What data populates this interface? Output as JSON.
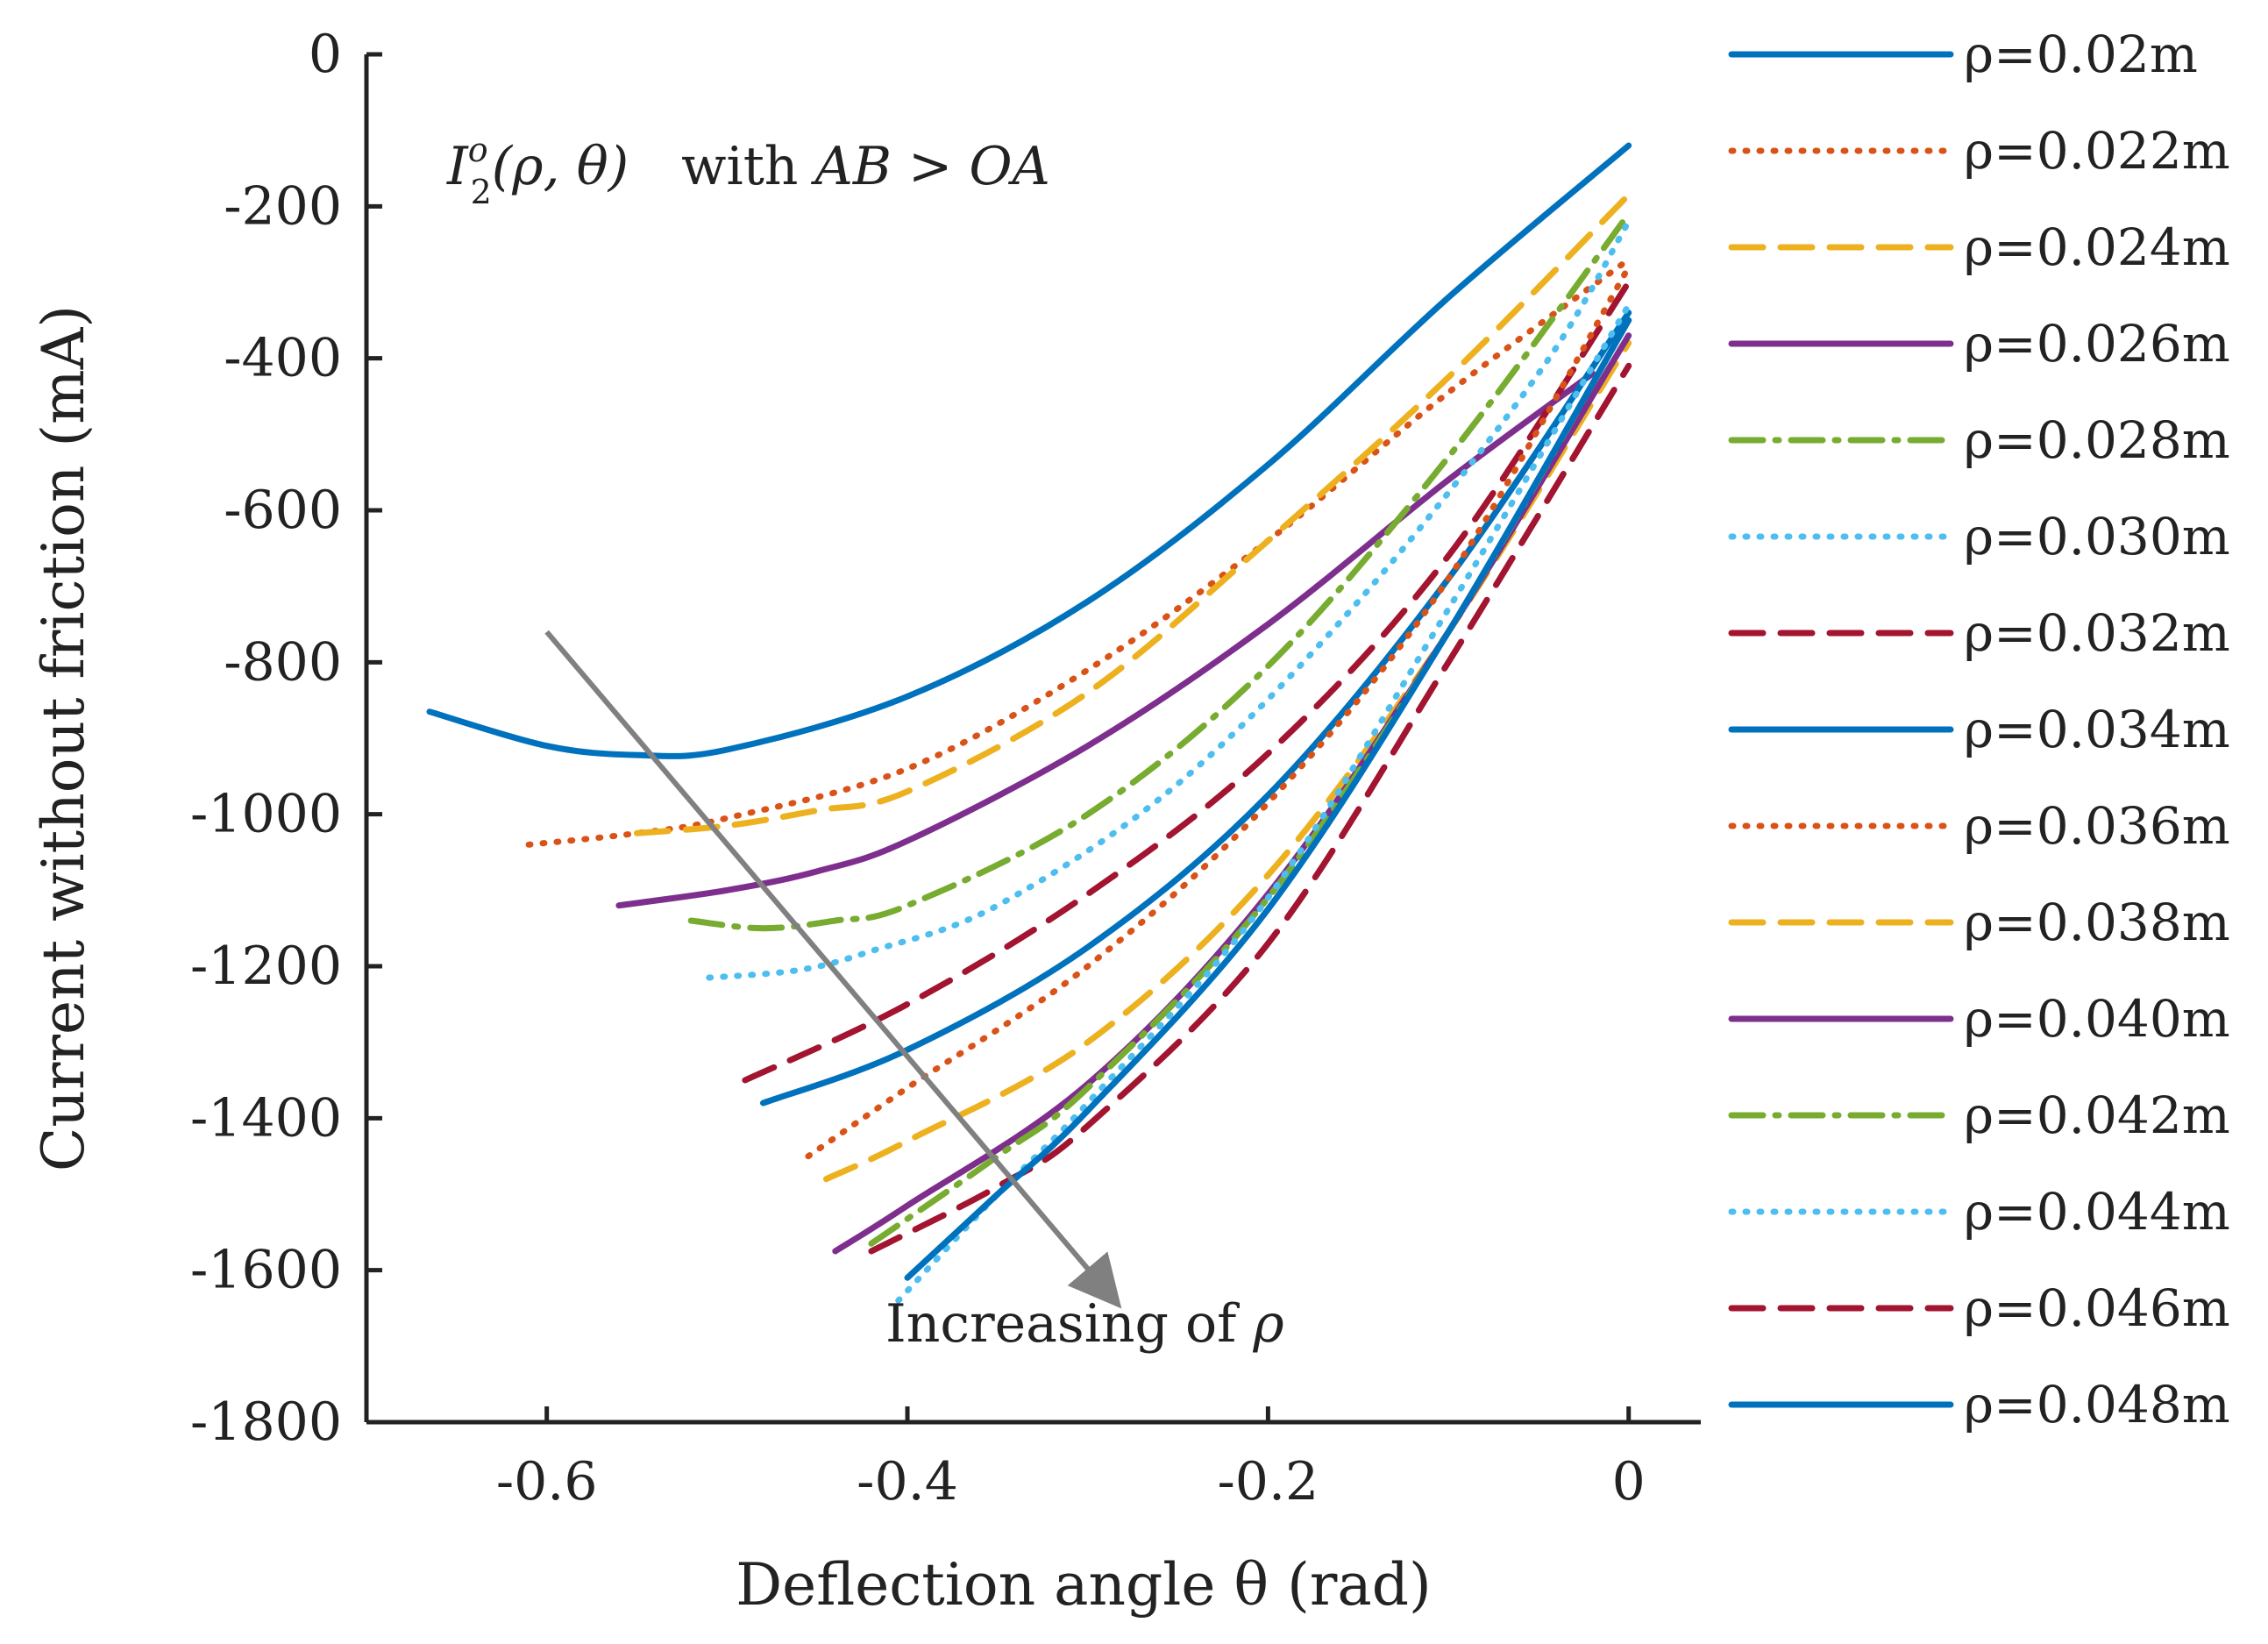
{
  "chart_data": {
    "type": "line",
    "title": "",
    "xlabel": "Deflection angle θ (rad)",
    "ylabel": "Current without friction (mA)",
    "xlim": [
      -0.7,
      0.04
    ],
    "ylim": [
      -1800,
      0
    ],
    "x_ticks": [
      -0.6,
      -0.4,
      -0.2,
      0
    ],
    "x_tick_labels": [
      "-0.6",
      "-0.4",
      "-0.2",
      "0"
    ],
    "y_ticks": [
      0,
      -200,
      -400,
      -600,
      -800,
      -1000,
      -1200,
      -1400,
      -1600,
      -1800
    ],
    "y_tick_labels": [
      "0",
      "-200",
      "-400",
      "-600",
      "-800",
      "-1000",
      "-1200",
      "-1400",
      "-1600",
      "-1800"
    ],
    "grid": false,
    "legend_position": "right, outside",
    "annotations": {
      "formula_symbol": "I",
      "formula_superscript": "o",
      "formula_subscript": "2",
      "formula_args": "(ρ, θ)",
      "formula_text_with": "with ",
      "formula_condition": "AB > OA",
      "arrow_label_prefix": "Increasing of ",
      "arrow_label_symbol": "ρ",
      "arrow_from": [
        -0.6,
        -760
      ],
      "arrow_to": [
        -0.285,
        -1640
      ]
    },
    "series": [
      {
        "name": "ρ=0.02m",
        "color": "#0072BD",
        "dash": "solid",
        "x": [
          -0.665,
          -0.6,
          -0.55,
          -0.5,
          -0.4,
          -0.3,
          -0.2,
          -0.1,
          0.0
        ],
        "y": [
          -865,
          -910,
          -922,
          -915,
          -845,
          -720,
          -540,
          -320,
          -120
        ]
      },
      {
        "name": "ρ=0.022m",
        "color": "#D95319",
        "dash": "dot",
        "x": [
          -0.61,
          -0.55,
          -0.5,
          -0.4,
          -0.3,
          -0.2,
          -0.1,
          0.0
        ],
        "y": [
          -1040,
          -1025,
          -1005,
          -940,
          -810,
          -640,
          -445,
          -270
        ]
      },
      {
        "name": "ρ=0.024m",
        "color": "#EDB120",
        "dash": "dash",
        "x": [
          -0.55,
          -0.5,
          -0.45,
          -0.4,
          -0.3,
          -0.2,
          -0.1,
          0.0
        ],
        "y": [
          -1025,
          -1015,
          -995,
          -970,
          -840,
          -640,
          -425,
          -185
        ]
      },
      {
        "name": "ρ=0.026m",
        "color": "#7E2F8E",
        "dash": "solid",
        "x": [
          -0.56,
          -0.5,
          -0.45,
          -0.4,
          -0.3,
          -0.2,
          -0.1,
          -0.02
        ],
        "y": [
          -1120,
          -1100,
          -1075,
          -1035,
          -910,
          -750,
          -560,
          -420
        ]
      },
      {
        "name": "ρ=0.028m",
        "color": "#77AC30",
        "dash": "dashdot",
        "x": [
          -0.52,
          -0.48,
          -0.44,
          -0.4,
          -0.3,
          -0.2,
          -0.1,
          0.0
        ],
        "y": [
          -1140,
          -1150,
          -1140,
          -1120,
          -1000,
          -805,
          -530,
          -210
        ]
      },
      {
        "name": "ρ=0.030m",
        "color": "#4DBEEE",
        "dash": "dot",
        "x": [
          -0.51,
          -0.46,
          -0.42,
          -0.35,
          -0.25,
          -0.15,
          -0.05,
          0.0
        ],
        "y": [
          -1215,
          -1205,
          -1180,
          -1120,
          -960,
          -720,
          -420,
          -220
        ]
      },
      {
        "name": "ρ=0.032m",
        "color": "#A2142F",
        "dash": "dash",
        "x": [
          -0.49,
          -0.4,
          -0.3,
          -0.2,
          -0.1,
          0.0
        ],
        "y": [
          -1350,
          -1250,
          -1105,
          -920,
          -660,
          -300
        ]
      },
      {
        "name": "ρ=0.034m",
        "color": "#0072BD",
        "dash": "solid",
        "x": [
          -0.48,
          -0.4,
          -0.3,
          -0.2,
          -0.1,
          0.0
        ],
        "y": [
          -1380,
          -1310,
          -1175,
          -975,
          -690,
          -340
        ]
      },
      {
        "name": "ρ=0.036m",
        "color": "#D95319",
        "dash": "dot",
        "x": [
          -0.455,
          -0.4,
          -0.3,
          -0.2,
          -0.1,
          0.0
        ],
        "y": [
          -1450,
          -1360,
          -1200,
          -985,
          -690,
          -280
        ]
      },
      {
        "name": "ρ=0.038m",
        "color": "#EDB120",
        "dash": "dash",
        "x": [
          -0.445,
          -0.4,
          -0.3,
          -0.2,
          -0.1,
          0.0
        ],
        "y": [
          -1480,
          -1430,
          -1300,
          -1080,
          -760,
          -380
        ]
      },
      {
        "name": "ρ=0.040m",
        "color": "#7E2F8E",
        "dash": "solid",
        "x": [
          -0.44,
          -0.4,
          -0.3,
          -0.2,
          -0.1,
          0.0
        ],
        "y": [
          -1575,
          -1515,
          -1355,
          -1105,
          -760,
          -370
        ]
      },
      {
        "name": "ρ=0.042m",
        "color": "#77AC30",
        "dash": "dashdot",
        "x": [
          -0.42,
          -0.35,
          -0.3,
          -0.2,
          -0.1,
          0.0
        ],
        "y": [
          -1565,
          -1450,
          -1360,
          -1110,
          -760,
          -350
        ]
      },
      {
        "name": "ρ=0.044m",
        "color": "#4DBEEE",
        "dash": "dot",
        "x": [
          -0.405,
          -0.35,
          -0.3,
          -0.2,
          -0.1,
          0.0
        ],
        "y": [
          -1640,
          -1500,
          -1380,
          -1110,
          -730,
          -330
        ]
      },
      {
        "name": "ρ=0.046m",
        "color": "#A2142F",
        "dash": "dash",
        "x": [
          -0.42,
          -0.35,
          -0.3,
          -0.2,
          -0.1,
          0.0
        ],
        "y": [
          -1575,
          -1490,
          -1410,
          -1170,
          -800,
          -410
        ]
      },
      {
        "name": "ρ=0.048m",
        "color": "#0072BD",
        "dash": "solid",
        "x": [
          -0.4,
          -0.35,
          -0.3,
          -0.2,
          -0.1,
          0.0
        ],
        "y": [
          -1610,
          -1500,
          -1390,
          -1125,
          -760,
          -350
        ]
      }
    ]
  }
}
